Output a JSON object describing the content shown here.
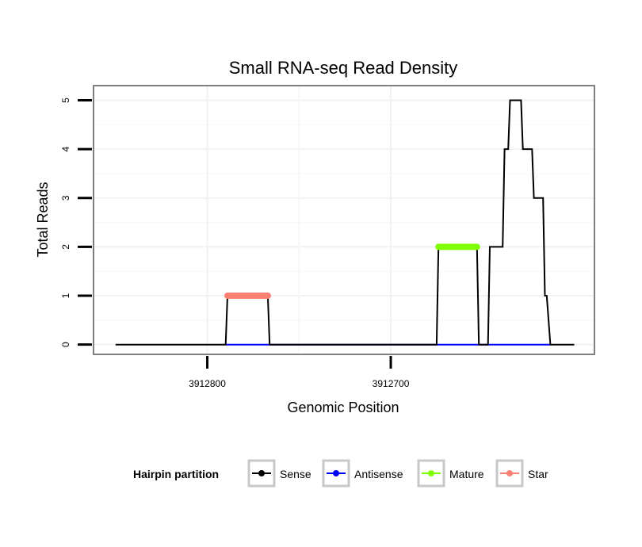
{
  "chart_data": {
    "type": "line",
    "title": "Small RNA-seq Read Density",
    "xlabel": "Genomic Position",
    "ylabel": "Total Reads",
    "x_reversed": true,
    "xlim": [
      3912862,
      3912589
    ],
    "ylim": [
      -0.2,
      5.3
    ],
    "x_ticks": [
      3912800,
      3912700
    ],
    "x_tick_labels": [
      "3912800",
      "3912700"
    ],
    "y_ticks": [
      0,
      1,
      2,
      3,
      4,
      5
    ],
    "y_tick_labels": [
      "0",
      "1",
      "2",
      "3",
      "4",
      "5"
    ],
    "grid": true,
    "legend": {
      "title": "Hairpin partition",
      "position": "bottom",
      "entries": [
        {
          "name": "Sense",
          "color": "#000000"
        },
        {
          "name": "Antisense",
          "color": "#0000ff"
        },
        {
          "name": "Mature",
          "color": "#7fff00"
        },
        {
          "name": "Star",
          "color": "#fa8072"
        }
      ]
    },
    "series": [
      {
        "name": "Sense",
        "color": "#000000",
        "style": "line",
        "points": [
          [
            3912850,
            0
          ],
          [
            3912790,
            0
          ],
          [
            3912789,
            1
          ],
          [
            3912767,
            1
          ],
          [
            3912766,
            0
          ],
          [
            3912675,
            0
          ],
          [
            3912674,
            2
          ],
          [
            3912653,
            2
          ],
          [
            3912652,
            0
          ],
          [
            3912647,
            0
          ],
          [
            3912646,
            2
          ],
          [
            3912639,
            2
          ],
          [
            3912638,
            4
          ],
          [
            3912636,
            4
          ],
          [
            3912635,
            5
          ],
          [
            3912629,
            5
          ],
          [
            3912628,
            4
          ],
          [
            3912623,
            4
          ],
          [
            3912622,
            3
          ],
          [
            3912617,
            3
          ],
          [
            3912616,
            1
          ],
          [
            3912615,
            1
          ],
          [
            3912613,
            0
          ],
          [
            3912600,
            0
          ]
        ]
      },
      {
        "name": "Antisense",
        "color": "#0000ff",
        "style": "line",
        "points": [
          [
            3912790,
            0
          ],
          [
            3912766,
            0
          ],
          [
            3912675,
            0
          ],
          [
            3912613,
            0
          ]
        ]
      },
      {
        "name": "Mature",
        "color": "#7fff00",
        "style": "points",
        "y": 2,
        "x_from": 3912674,
        "x_to": 3912653
      },
      {
        "name": "Star",
        "color": "#fa8072",
        "style": "points",
        "y": 1,
        "x_from": 3912789,
        "x_to": 3912767
      }
    ]
  }
}
